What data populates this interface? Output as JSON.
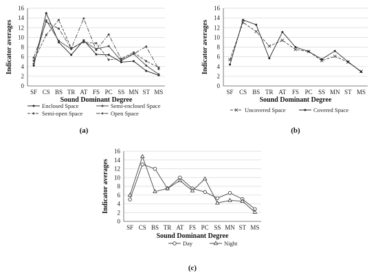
{
  "chart_data": [
    {
      "type": "line",
      "panel_label": "(a)",
      "xlabel": "Sound Dominant Degree",
      "ylabel": "Indicator averages",
      "categories": [
        "SF",
        "CS",
        "BS",
        "TR",
        "AT",
        "FS",
        "PC",
        "SS",
        "MN",
        "ST",
        "MS"
      ],
      "yticks": [
        0,
        2,
        4,
        6,
        8,
        10,
        12,
        14,
        16
      ],
      "ylim": [
        0,
        16
      ],
      "grid": true,
      "legend_position": "bottom",
      "series": [
        {
          "name": "Enclosed Space",
          "style": "solid",
          "marker": "dot",
          "color": "#222222",
          "values": [
            4.2,
            15.0,
            9.0,
            6.4,
            9.4,
            6.5,
            6.4,
            4.9,
            5.1,
            3.1,
            2.2
          ]
        },
        {
          "name": "Semi-enclosed Space",
          "style": "solid",
          "marker": "dot",
          "color": "#444444",
          "values": [
            4.6,
            13.5,
            9.3,
            7.6,
            9.2,
            7.6,
            8.2,
            5.2,
            6.6,
            4.2,
            2.4
          ]
        },
        {
          "name": "Semi-open Space",
          "style": "dash",
          "marker": "dot",
          "color": "#444444",
          "values": [
            5.2,
            10.5,
            13.6,
            7.8,
            9.0,
            8.8,
            5.4,
            5.6,
            6.9,
            5.1,
            3.8
          ]
        },
        {
          "name": "Open Space",
          "style": "dashdot",
          "marker": "dot",
          "color": "#444444",
          "values": [
            5.8,
            13.2,
            11.8,
            7.7,
            13.9,
            7.4,
            10.6,
            5.5,
            6.6,
            8.1,
            3.5
          ]
        }
      ]
    },
    {
      "type": "line",
      "panel_label": "(b)",
      "xlabel": "Sound Dominant Degree",
      "ylabel": "Indicator averages",
      "categories": [
        "SF",
        "CS",
        "BS",
        "TR",
        "AT",
        "FS",
        "PC",
        "SS",
        "MN",
        "ST",
        "MS"
      ],
      "yticks": [
        0,
        2,
        4,
        6,
        8,
        10,
        12,
        14,
        16
      ],
      "ylim": [
        0,
        16
      ],
      "grid": true,
      "legend_position": "bottom",
      "series": [
        {
          "name": "Uncovered Space",
          "style": "dash",
          "marker": "x",
          "color": "#444444",
          "values": [
            5.4,
            13.1,
            11.2,
            8.2,
            9.4,
            7.5,
            7.1,
            5.2,
            6.1,
            4.9,
            3.0
          ]
        },
        {
          "name": "Covered Space",
          "style": "solid",
          "marker": "dot",
          "color": "#222222",
          "values": [
            4.4,
            13.6,
            12.6,
            5.7,
            11.1,
            8.0,
            7.1,
            5.5,
            7.2,
            5.0,
            2.9
          ]
        }
      ]
    },
    {
      "type": "line",
      "panel_label": "(c)",
      "xlabel": "Sound Dominant Degree",
      "ylabel": "Indicator averages",
      "categories": [
        "SF",
        "CS",
        "BS",
        "TR",
        "AT",
        "FS",
        "PC",
        "SS",
        "MN",
        "ST",
        "MS"
      ],
      "yticks": [
        0,
        2,
        4,
        6,
        8,
        10,
        12,
        14,
        16
      ],
      "ylim": [
        0,
        16
      ],
      "grid": true,
      "legend_position": "bottom",
      "series": [
        {
          "name": "Day",
          "style": "solid",
          "marker": "circle",
          "color": "#444444",
          "values": [
            5.0,
            13.0,
            12.0,
            7.5,
            10.0,
            7.5,
            6.7,
            5.3,
            6.5,
            5.1,
            2.8
          ]
        },
        {
          "name": "Night",
          "style": "solid",
          "marker": "triangle",
          "color": "#444444",
          "values": [
            6.0,
            14.8,
            6.8,
            7.5,
            9.3,
            7.0,
            9.7,
            4.2,
            4.8,
            4.6,
            2.1
          ]
        }
      ]
    }
  ]
}
